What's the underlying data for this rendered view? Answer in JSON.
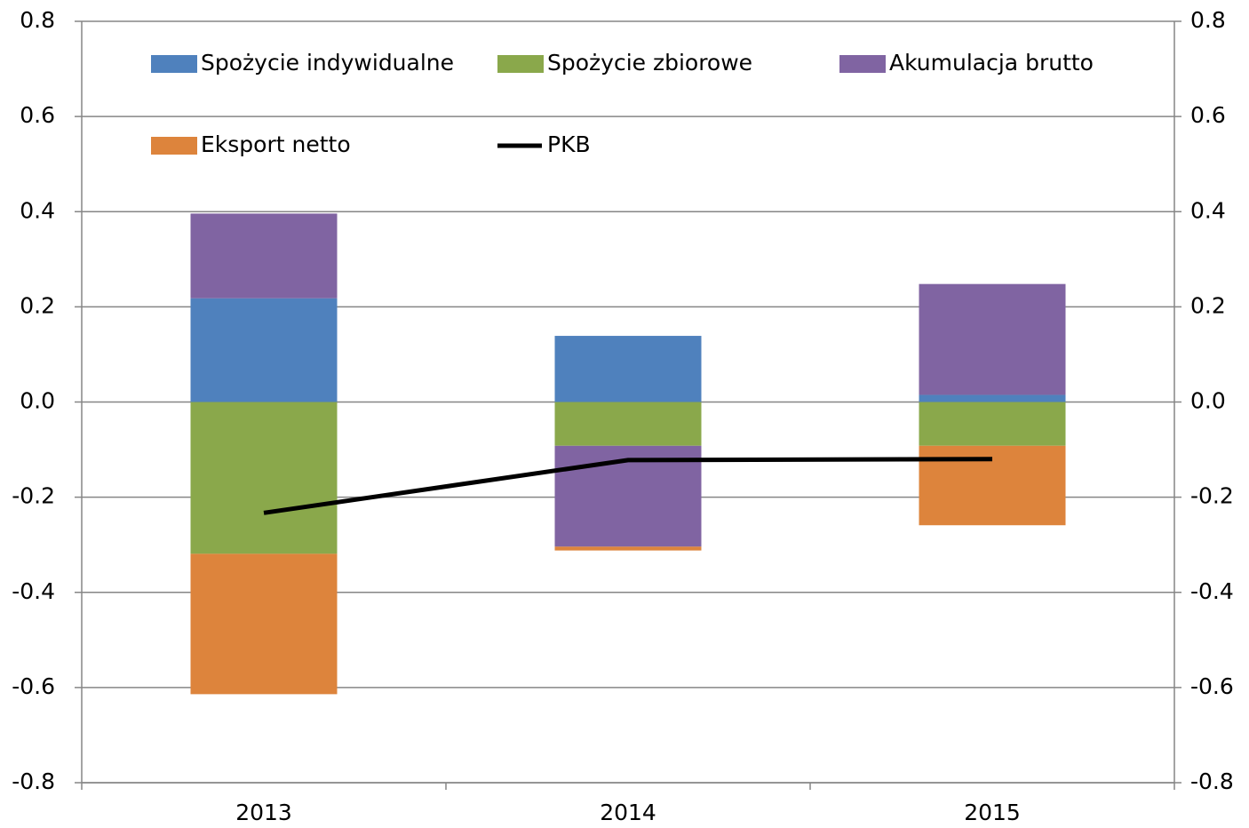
{
  "chart_data": {
    "type": "bar",
    "stacked": true,
    "categories": [
      "2013",
      "2014",
      "2015"
    ],
    "series": [
      {
        "name": "Spożycie indywidualne",
        "type": "bar",
        "color": "#4f81bd",
        "values": [
          0.218,
          0.139,
          0.015
        ]
      },
      {
        "name": "Spożycie zbiorowe",
        "type": "bar",
        "color": "#8aa84b",
        "values": [
          -0.319,
          -0.092,
          -0.092
        ]
      },
      {
        "name": "Akumulacja brutto",
        "type": "bar",
        "color": "#8064a2",
        "values": [
          0.178,
          -0.212,
          0.233
        ]
      },
      {
        "name": "Eksport netto",
        "type": "bar",
        "color": "#dd843c",
        "values": [
          -0.295,
          -0.008,
          -0.167
        ]
      },
      {
        "name": "PKB",
        "type": "line",
        "color": "#000000",
        "values": [
          -0.233,
          -0.122,
          -0.12
        ]
      }
    ],
    "ylim": [
      -0.8,
      0.8
    ],
    "yticks": [
      -0.8,
      -0.6,
      -0.4,
      -0.2,
      {
        "value": 0,
        "label": "0.0"
      },
      0.2,
      0.4,
      0.6,
      0.8
    ],
    "y2lim": [
      -0.8,
      0.8
    ],
    "y2ticks": [
      -0.8,
      -0.6,
      -0.4,
      -0.2,
      {
        "value": 0,
        "label": "0.0"
      },
      0.2,
      0.4,
      0.6,
      0.8
    ],
    "grid": true,
    "legend": "top"
  }
}
